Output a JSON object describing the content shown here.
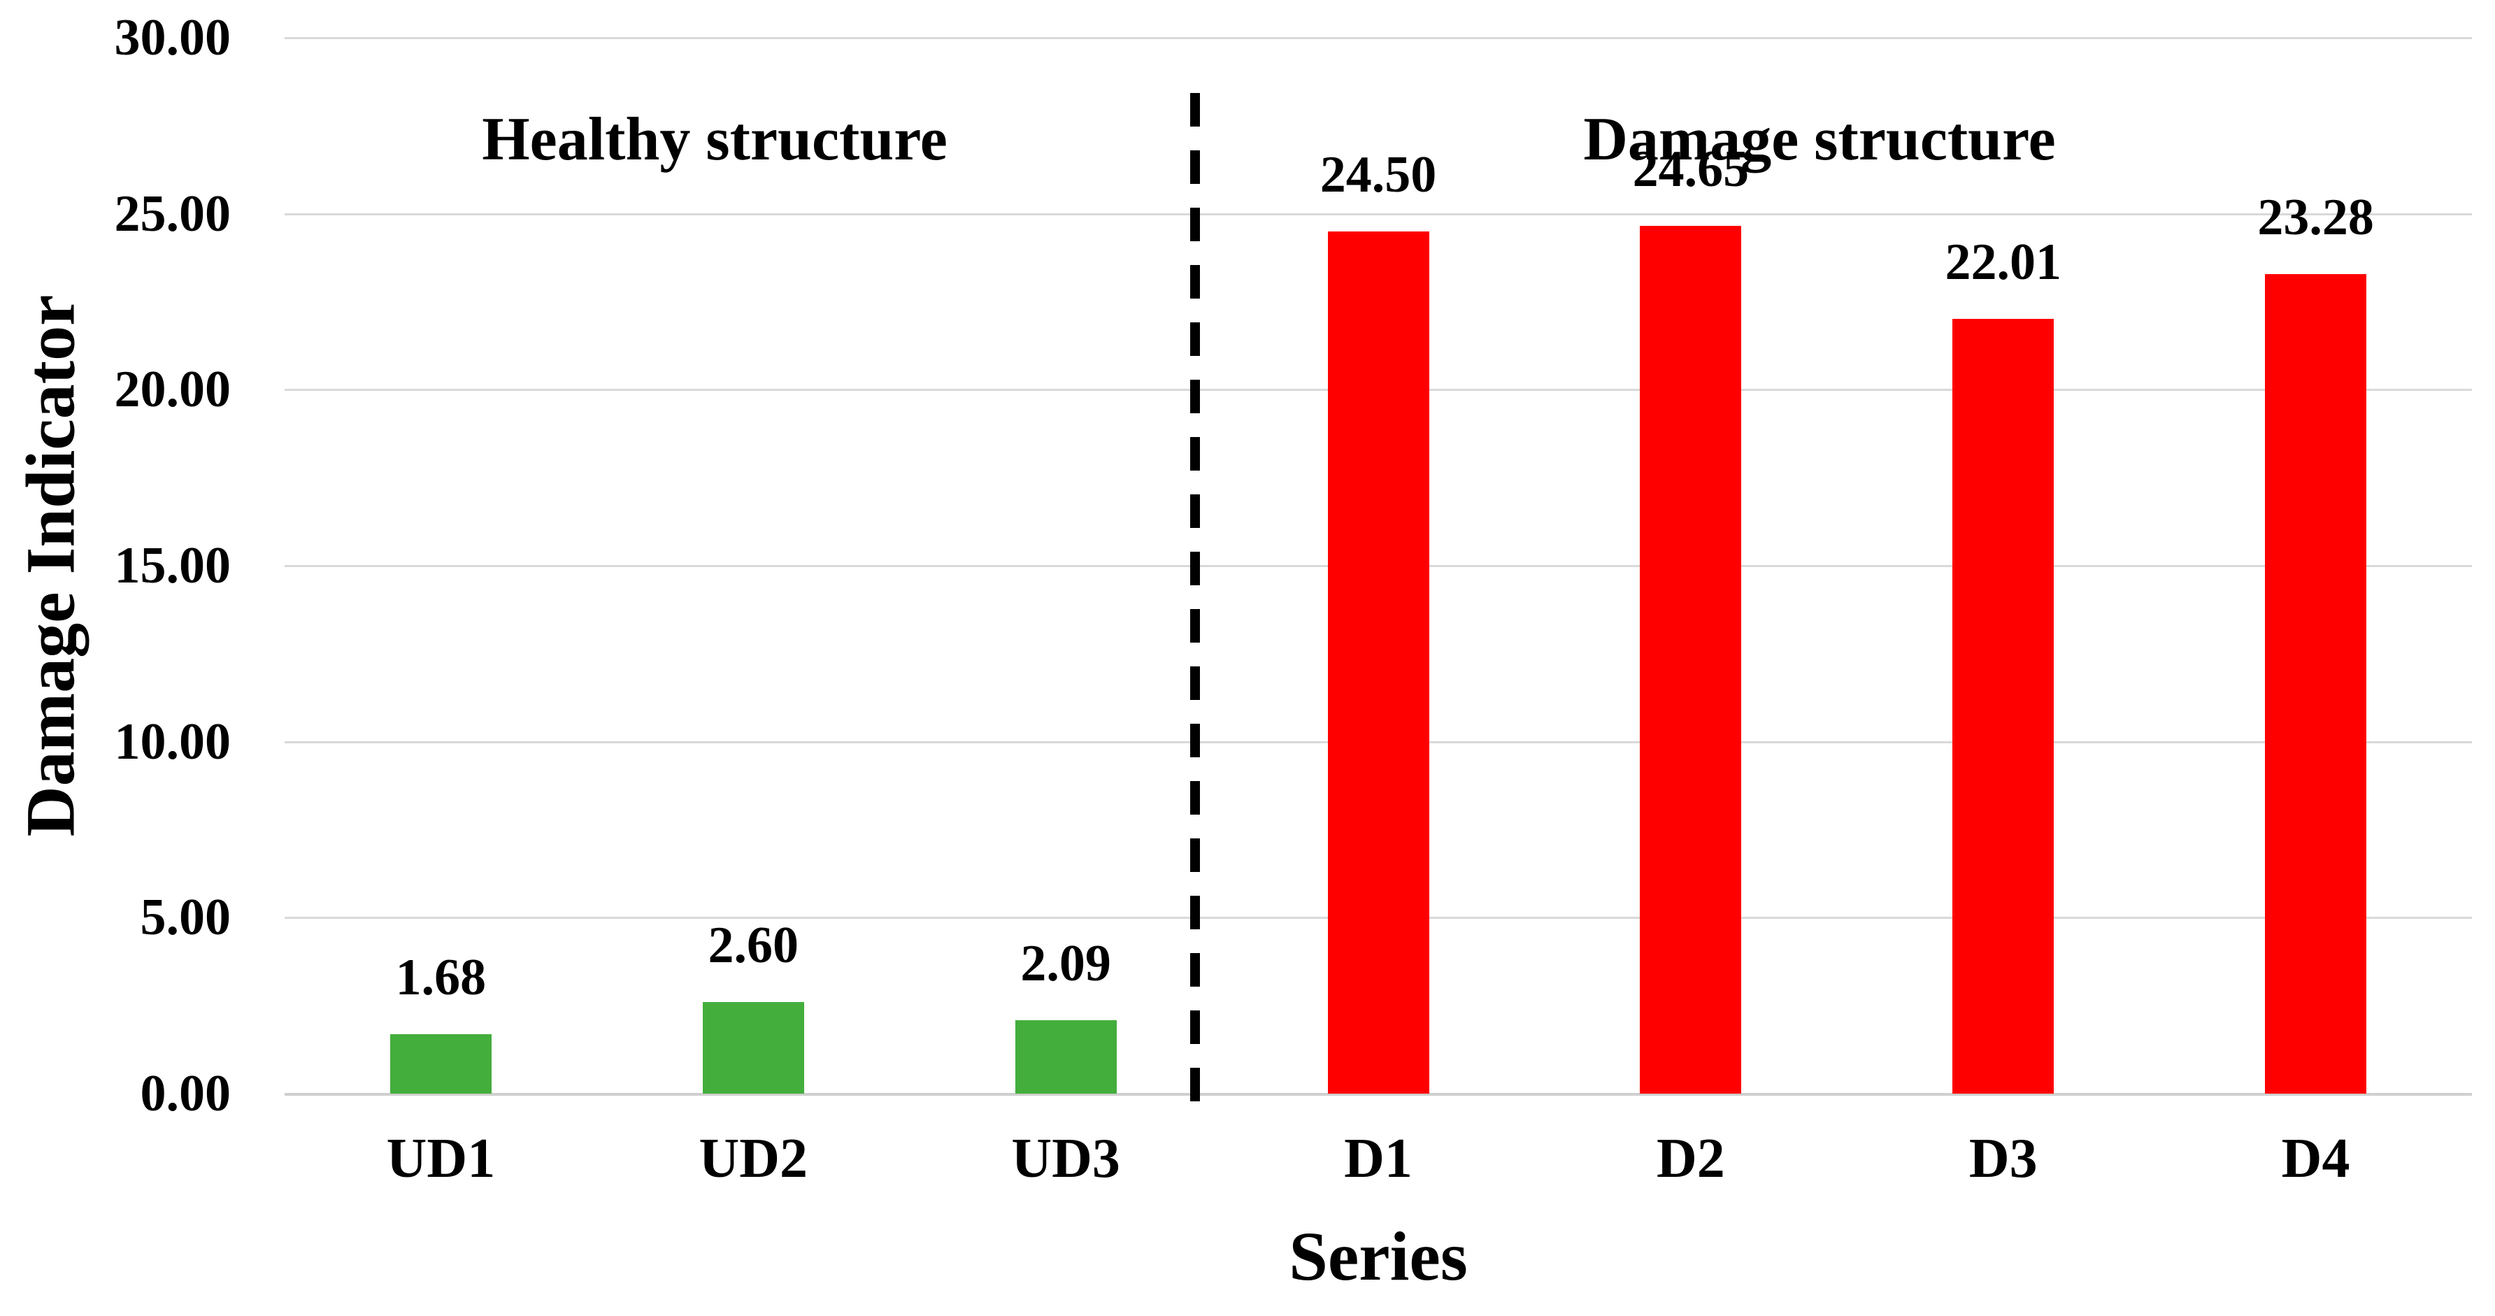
{
  "chart_data": {
    "type": "bar",
    "title": "",
    "xlabel": "Series",
    "ylabel": "Damage Indicator",
    "ylim": [
      0,
      30
    ],
    "ytick_step": 5,
    "yticks": [
      {
        "value": 0,
        "label": "0.00"
      },
      {
        "value": 5,
        "label": "5.00"
      },
      {
        "value": 10,
        "label": "10.00"
      },
      {
        "value": 15,
        "label": "15.00"
      },
      {
        "value": 20,
        "label": "20.00"
      },
      {
        "value": 25,
        "label": "25.00"
      },
      {
        "value": 30,
        "label": "30.00"
      }
    ],
    "grid": true,
    "legend": "none",
    "categories": [
      "UD1",
      "UD2",
      "UD3",
      "D1",
      "D2",
      "D3",
      "D4"
    ],
    "values": [
      1.68,
      2.6,
      2.09,
      24.5,
      24.65,
      22.01,
      23.28
    ],
    "data_labels": [
      "1.68",
      "2.60",
      "2.09",
      "24.50",
      "24.65",
      "22.01",
      "23.28"
    ],
    "series_groups": [
      "healthy",
      "healthy",
      "healthy",
      "damage",
      "damage",
      "damage",
      "damage"
    ],
    "annotations": [
      {
        "text": "Healthy structure",
        "group": "healthy"
      },
      {
        "text": "Damage structure",
        "group": "damage"
      }
    ],
    "separator": {
      "style": "dashed",
      "after_category": "UD3",
      "color": "#000000"
    },
    "colors": {
      "healthy_bar": "#43ae3c",
      "damage_bar": "#ff0000",
      "gridline": "#d9d9d9",
      "text": "#000000",
      "background": "#ffffff"
    }
  }
}
